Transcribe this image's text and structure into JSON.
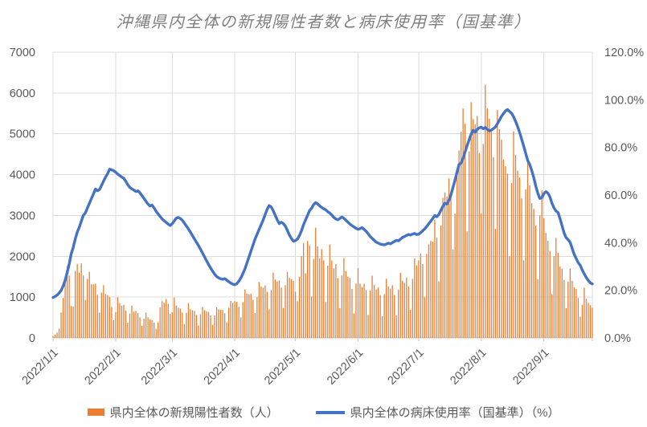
{
  "chart_data": {
    "type": "combo_bar_line",
    "title": "沖縄県内全体の新規陽性者数と病床使用率（国基準）",
    "legend_position": "bottom",
    "grid": true,
    "x_axis": {
      "kind": "date_daily",
      "first_date": "2022/1/1",
      "num_days": 268,
      "tick_labels": [
        "2022/1/1",
        "2022/2/1",
        "2022/3/1",
        "2022/4/1",
        "2022/5/1",
        "2022/6/1",
        "2022/7/1",
        "2022/8/1",
        "2022/9/1"
      ],
      "tick_day_offsets": [
        0,
        31,
        59,
        90,
        120,
        151,
        181,
        212,
        243
      ]
    },
    "left_axis": {
      "min": 0,
      "max": 7000,
      "tick_step": 1000,
      "tick_labels": [
        "0",
        "1000",
        "2000",
        "3000",
        "4000",
        "5000",
        "6000",
        "7000"
      ]
    },
    "right_axis": {
      "min": 0,
      "max": 120,
      "tick_step": 20,
      "tick_labels": [
        "0.0%",
        "20.0%",
        "40.0%",
        "60.0%",
        "80.0%",
        "100.0%",
        "120.0%"
      ]
    },
    "series": [
      {
        "name": "県内全体の新規陽性者数（人）",
        "type": "bar",
        "axis": "left",
        "color": "#ED7D31",
        "values": [
          50,
          80,
          130,
          225,
          620,
          980,
          1410,
          1760,
          1530,
          780,
          770,
          1640,
          1815,
          1600,
          1830,
          1530,
          930,
          1445,
          1620,
          1310,
          1315,
          1325,
          1055,
          620,
          1110,
          1290,
          1075,
          1050,
          1000,
          760,
          435,
          630,
          995,
          850,
          790,
          810,
          665,
          375,
          595,
          790,
          640,
          660,
          610,
          505,
          295,
          470,
          620,
          505,
          455,
          440,
          375,
          220,
          380,
          750,
          900,
          860,
          955,
          835,
          590,
          630,
          990,
          795,
          740,
          720,
          620,
          340,
          615,
          850,
          700,
          680,
          660,
          560,
          305,
          580,
          760,
          680,
          650,
          640,
          555,
          320,
          550,
          750,
          700,
          690,
          685,
          600,
          380,
          740,
          905,
          860,
          900,
          885,
          760,
          505,
          880,
          1190,
          1085,
          1070,
          1080,
          935,
          610,
          1000,
          1370,
          1260,
          1230,
          1285,
          1130,
          700,
          1170,
          1600,
          1430,
          1380,
          1410,
          1230,
          735,
          1290,
          1620,
          1470,
          1440,
          1400,
          1130,
          900,
          1500,
          2005,
          2325,
          1585,
          2375,
          2270,
          1015,
          1935,
          2700,
          2240,
          1950,
          2175,
          1900,
          880,
          1770,
          2290,
          1900,
          1705,
          1810,
          1465,
          730,
          1530,
          1955,
          1635,
          1500,
          1470,
          1200,
          600,
          1330,
          1710,
          1330,
          1245,
          1325,
          1170,
          565,
          1160,
          1525,
          1300,
          1190,
          1235,
          1050,
          530,
          1070,
          1450,
          1260,
          1205,
          1290,
          1050,
          555,
          1185,
          1595,
          1400,
          1350,
          1480,
          1260,
          690,
          1445,
          1945,
          1780,
          1900,
          2070,
          1810,
          995,
          2060,
          2290,
          2375,
          2360,
          2900,
          2460,
          1385,
          2755,
          3435,
          3565,
          3465,
          3905,
          3480,
          2170,
          3045,
          4155,
          4590,
          5050,
          5620,
          5250,
          2610,
          4570,
          5775,
          5360,
          5235,
          5440,
          4530,
          3050,
          4750,
          6200,
          5620,
          5370,
          5110,
          4430,
          2670,
          5585,
          5115,
          4855,
          4370,
          4205,
          4025,
          2000,
          3795,
          5060,
          4480,
          4100,
          3930,
          3420,
          1900,
          3640,
          4420,
          3740,
          3300,
          3160,
          2750,
          1440,
          3000,
          3610,
          2930,
          2570,
          2380,
          2130,
          1070,
          2000,
          2450,
          2090,
          1750,
          1690,
          1420,
          730,
          1380,
          1700,
          1400,
          1240,
          1200,
          980,
          520,
          810,
          1230,
          960,
          860,
          800,
          740
        ]
      },
      {
        "name": "県内全体の病床使用率（国基準）（%）",
        "type": "line",
        "axis": "right",
        "color": "#4472C4",
        "values": [
          17.0,
          17.4,
          18.0,
          18.8,
          20.0,
          21.8,
          24.2,
          27.5,
          31.0,
          35.3,
          38.0,
          41.5,
          44.5,
          46.5,
          49.0,
          51.5,
          52.5,
          54.5,
          56.5,
          58.5,
          60.5,
          62.5,
          61.8,
          62.3,
          64.0,
          65.8,
          67.5,
          69.0,
          70.9,
          70.6,
          70.2,
          69.6,
          68.8,
          68.2,
          67.6,
          67.0,
          65.8,
          64.3,
          63.2,
          62.6,
          62.1,
          61.5,
          61.8,
          60.9,
          59.8,
          58.6,
          57.4,
          56.2,
          55.4,
          55.8,
          54.6,
          53.2,
          52.1,
          51.0,
          50.0,
          49.2,
          48.5,
          47.8,
          47.2,
          48.0,
          49.1,
          50.3,
          50.6,
          50.2,
          49.4,
          48.2,
          47.0,
          45.8,
          44.4,
          43.0,
          41.6,
          40.2,
          38.8,
          37.2,
          35.6,
          34.0,
          32.4,
          30.8,
          29.4,
          28.0,
          26.8,
          25.8,
          25.2,
          24.8,
          24.6,
          24.9,
          24.3,
          23.6,
          23.0,
          22.6,
          22.3,
          22.8,
          23.8,
          25.2,
          27.0,
          29.0,
          31.5,
          34.0,
          36.5,
          39.0,
          41.5,
          43.5,
          45.5,
          47.5,
          49.5,
          51.8,
          54.0,
          55.6,
          55.0,
          53.5,
          51.5,
          49.5,
          48.0,
          48.6,
          48.0,
          47.0,
          45.2,
          43.2,
          41.8,
          40.6,
          40.9,
          41.5,
          43.0,
          45.0,
          47.5,
          49.5,
          51.5,
          53.5,
          54.5,
          56.0,
          56.8,
          56.3,
          55.5,
          54.8,
          54.2,
          53.8,
          53.0,
          52.4,
          51.6,
          50.6,
          50.0,
          49.6,
          50.2,
          50.8,
          50.2,
          49.4,
          48.6,
          47.8,
          47.2,
          46.6,
          46.0,
          45.6,
          45.9,
          46.3,
          45.6,
          44.8,
          43.8,
          42.6,
          41.8,
          41.0,
          40.2,
          39.8,
          39.4,
          39.2,
          39.1,
          39.4,
          39.8,
          39.5,
          40.0,
          40.5,
          41.0,
          40.8,
          41.5,
          42.2,
          42.6,
          43.0,
          43.4,
          43.2,
          43.6,
          43.9,
          43.4,
          43.6,
          44.2,
          45.0,
          45.8,
          46.8,
          47.9,
          49.0,
          50.2,
          51.4,
          50.9,
          51.8,
          53.6,
          55.2,
          56.6,
          56.2,
          57.8,
          60.2,
          63.2,
          66.2,
          69.6,
          72.8,
          73.4,
          75.4,
          78.2,
          80.8,
          83.2,
          85.6,
          87.2,
          86.4,
          87.6,
          88.2,
          88.5,
          87.8,
          88.4,
          87.6,
          86.9,
          87.3,
          87.9,
          88.6,
          90.0,
          91.4,
          93.0,
          94.2,
          95.3,
          95.9,
          95.1,
          94.3,
          92.9,
          90.9,
          88.8,
          86.3,
          83.5,
          80.5,
          77.5,
          74.5,
          72.8,
          70.3,
          67.3,
          63.8,
          60.8,
          58.6,
          58.9,
          60.6,
          61.4,
          60.8,
          59.2,
          56.6,
          54.6,
          53.3,
          52.7,
          50.1,
          47.1,
          44.1,
          42.1,
          41.3,
          40.1,
          37.6,
          35.1,
          33.3,
          31.6,
          30.5,
          28.6,
          26.9,
          25.3,
          24.1,
          23.1,
          22.7
        ]
      }
    ]
  },
  "style_colors": {
    "bar_series": "#ED7D31",
    "line_series": "#4472C4",
    "gridline": "#dcdcdc",
    "axis_line": "#c6c6c6",
    "tick_label": "#595959",
    "title": "#7f7f7f"
  }
}
